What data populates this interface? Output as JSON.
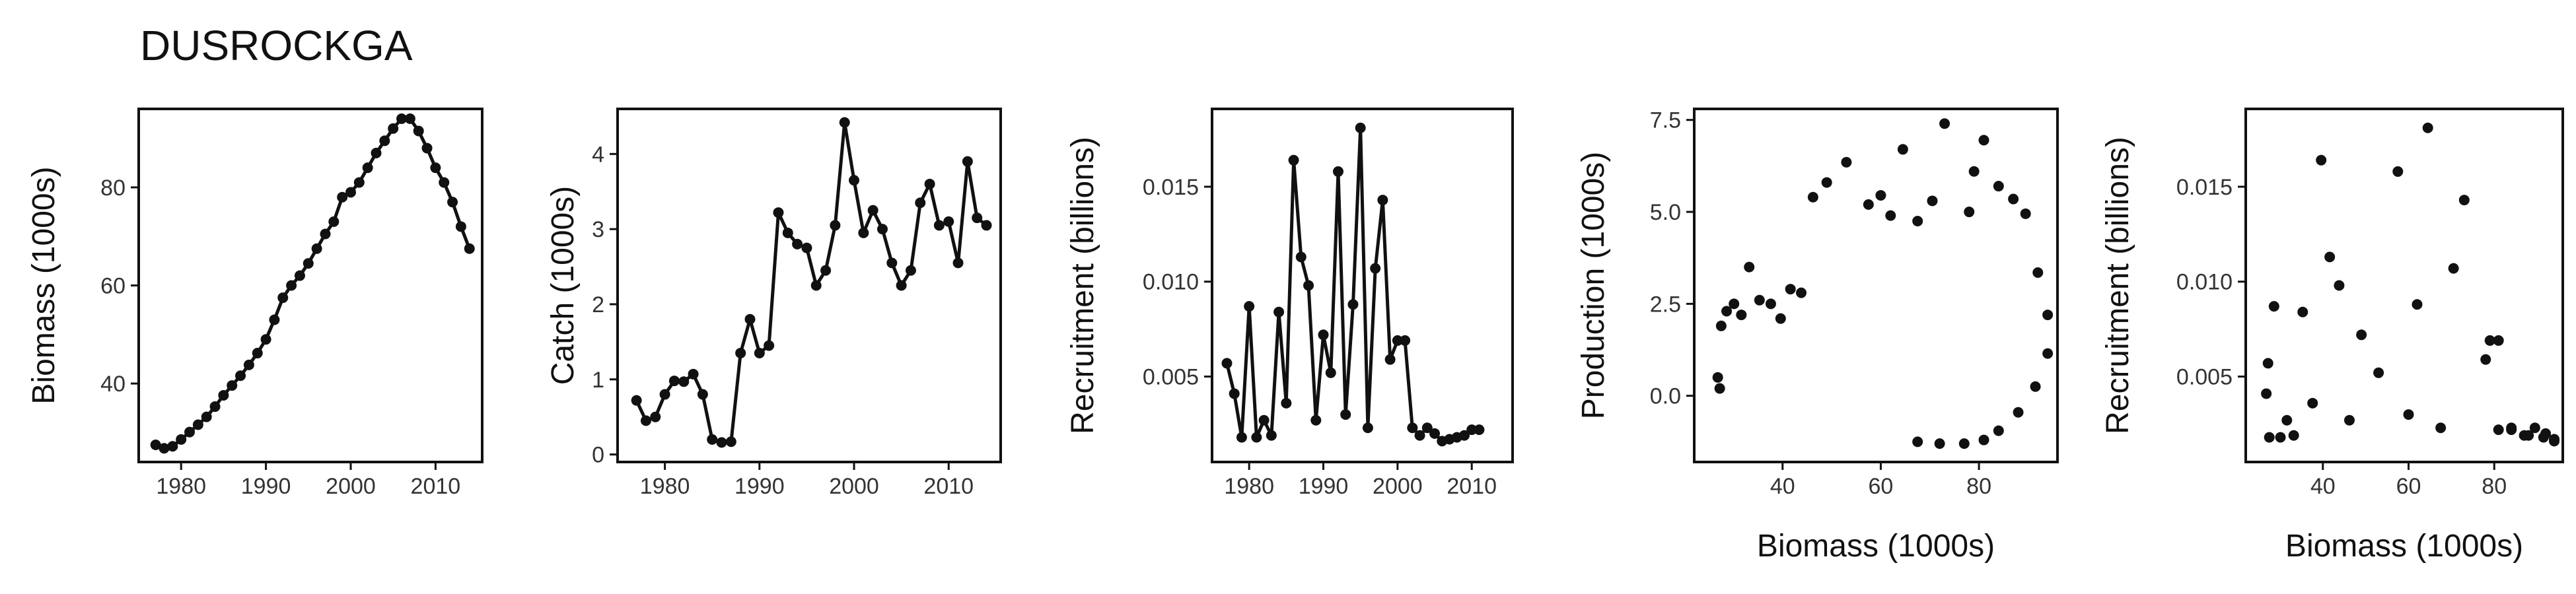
{
  "title": "DUSROCKGA",
  "colors": {
    "ink": "#111111",
    "tick": "#333333",
    "background": "#ffffff"
  },
  "chart_data": [
    {
      "type": "line",
      "id": "biomass",
      "xlabel": "",
      "ylabel": "Biomass (1000s)",
      "xlim": [
        1975,
        2015.5
      ],
      "ylim": [
        24,
        96
      ],
      "xticks": [
        1980,
        1990,
        2000,
        2010
      ],
      "yticks": [
        40,
        60,
        80
      ],
      "x": [
        1977,
        1978,
        1979,
        1980,
        1981,
        1982,
        1983,
        1984,
        1985,
        1986,
        1987,
        1988,
        1989,
        1990,
        1991,
        1992,
        1993,
        1994,
        1995,
        1996,
        1997,
        1998,
        1999,
        2000,
        2001,
        2002,
        2003,
        2004,
        2005,
        2006,
        2007,
        2008,
        2009,
        2010,
        2011,
        2012,
        2013,
        2014
      ],
      "y": [
        27.5,
        26.8,
        27.2,
        28.6,
        30.1,
        31.6,
        33.2,
        35.3,
        37.6,
        39.6,
        41.6,
        43.8,
        46.2,
        49.0,
        53.0,
        57.5,
        60.0,
        62.0,
        64.5,
        67.5,
        70.5,
        73.0,
        78.0,
        79.0,
        81.0,
        84.0,
        87.0,
        89.5,
        92.0,
        94.0,
        94.0,
        91.5,
        88.0,
        84.0,
        81.0,
        77.0,
        72.0,
        67.5
      ]
    },
    {
      "type": "line",
      "id": "catch",
      "xlabel": "",
      "ylabel": "Catch (1000s)",
      "xlim": [
        1975,
        2015.5
      ],
      "ylim": [
        -0.1,
        4.6
      ],
      "xticks": [
        1980,
        1990,
        2000,
        2010
      ],
      "yticks": [
        0,
        1,
        2,
        3,
        4
      ],
      "x": [
        1977,
        1978,
        1979,
        1980,
        1981,
        1982,
        1983,
        1984,
        1985,
        1986,
        1987,
        1988,
        1989,
        1990,
        1991,
        1992,
        1993,
        1994,
        1995,
        1996,
        1997,
        1998,
        1999,
        2000,
        2001,
        2002,
        2003,
        2004,
        2005,
        2006,
        2007,
        2008,
        2009,
        2010,
        2011,
        2012,
        2013,
        2014
      ],
      "y": [
        0.72,
        0.45,
        0.5,
        0.8,
        0.98,
        0.97,
        1.07,
        0.8,
        0.2,
        0.16,
        0.17,
        1.35,
        1.8,
        1.35,
        1.45,
        3.22,
        2.95,
        2.8,
        2.75,
        2.25,
        2.45,
        3.05,
        4.42,
        3.65,
        2.95,
        3.25,
        3.0,
        2.55,
        2.25,
        2.45,
        3.35,
        3.6,
        3.05,
        3.1,
        2.55,
        3.9,
        3.15,
        3.05
      ]
    },
    {
      "type": "line",
      "id": "recruitment",
      "xlabel": "",
      "ylabel": "Recruitment (billions)",
      "xlim": [
        1975,
        2015.5
      ],
      "ylim": [
        0.0005,
        0.0191
      ],
      "xticks": [
        1980,
        1990,
        2000,
        2010
      ],
      "yticks": [
        0.005,
        0.01,
        0.015
      ],
      "ytick_labels": [
        "0.005",
        "0.010",
        "0.015"
      ],
      "x": [
        1977,
        1978,
        1979,
        1980,
        1981,
        1982,
        1983,
        1984,
        1985,
        1986,
        1987,
        1988,
        1989,
        1990,
        1991,
        1992,
        1993,
        1994,
        1995,
        1996,
        1997,
        1998,
        1999,
        2000,
        2001,
        2002,
        2003,
        2004,
        2005,
        2006,
        2007,
        2008,
        2009,
        2010,
        2011
      ],
      "y": [
        0.0057,
        0.0041,
        0.0018,
        0.0087,
        0.0018,
        0.0027,
        0.0019,
        0.0084,
        0.0036,
        0.0164,
        0.0113,
        0.0098,
        0.0027,
        0.0072,
        0.0052,
        0.0158,
        0.003,
        0.0088,
        0.0181,
        0.0023,
        0.0107,
        0.0143,
        0.0059,
        0.0069,
        0.0069,
        0.0023,
        0.0019,
        0.0023,
        0.002,
        0.0016,
        0.0017,
        0.0018,
        0.0019,
        0.0022,
        0.0022
      ]
    },
    {
      "type": "scatter",
      "id": "production",
      "xlabel": "Biomass (1000s)",
      "ylabel": "Production (1000s)",
      "xlim": [
        22,
        96
      ],
      "ylim": [
        -1.8,
        7.8
      ],
      "xticks": [
        40,
        60,
        80
      ],
      "yticks": [
        0.0,
        2.5,
        5.0,
        7.5
      ],
      "ytick_labels": [
        "0.0",
        "2.5",
        "5.0",
        "7.5"
      ],
      "x": [
        26.8,
        27.2,
        27.5,
        28.6,
        30.1,
        31.6,
        33.2,
        35.3,
        37.6,
        39.6,
        41.6,
        43.8,
        46.2,
        49.0,
        53.0,
        57.5,
        60.0,
        62.0,
        64.5,
        67.5,
        70.5,
        73.0,
        78.0,
        79.0,
        81.0,
        84.0,
        87.0,
        89.5,
        92.0,
        94.0,
        94.0,
        91.5,
        88.0,
        84.0,
        81.0,
        77.0,
        72.0,
        67.5
      ],
      "y": [
        0.5,
        0.2,
        1.9,
        2.3,
        2.5,
        2.2,
        3.5,
        2.6,
        2.5,
        2.1,
        2.9,
        2.8,
        5.4,
        5.8,
        6.35,
        5.2,
        5.45,
        4.9,
        6.7,
        4.75,
        5.3,
        7.4,
        5.0,
        6.1,
        6.95,
        5.7,
        5.35,
        4.95,
        3.35,
        2.2,
        1.15,
        0.25,
        -0.45,
        -0.95,
        -1.2,
        -1.3,
        -1.3,
        -1.25
      ]
    },
    {
      "type": "scatter",
      "id": "recruitment-vs-biomass",
      "xlabel": "Biomass (1000s)",
      "ylabel": "Recruitment (billions)",
      "xlim": [
        22,
        96
      ],
      "ylim": [
        0.0005,
        0.0191
      ],
      "xticks": [
        40,
        60,
        80
      ],
      "yticks": [
        0.005,
        0.01,
        0.015
      ],
      "ytick_labels": [
        "0.005",
        "0.010",
        "0.015"
      ],
      "x": [
        26.8,
        27.2,
        27.5,
        28.6,
        30.1,
        31.6,
        33.2,
        35.3,
        37.6,
        39.6,
        41.6,
        43.8,
        46.2,
        49.0,
        53.0,
        57.5,
        60.0,
        62.0,
        64.5,
        67.5,
        70.5,
        73.0,
        78.0,
        79.0,
        81.0,
        84.0,
        87.0,
        89.5,
        92.0,
        94.0,
        94.0,
        91.5,
        88.0,
        84.0,
        81.0
      ],
      "y": [
        0.0041,
        0.0057,
        0.0018,
        0.0087,
        0.0018,
        0.0027,
        0.0019,
        0.0084,
        0.0036,
        0.0164,
        0.0113,
        0.0098,
        0.0027,
        0.0072,
        0.0052,
        0.0158,
        0.003,
        0.0088,
        0.0181,
        0.0023,
        0.0107,
        0.0143,
        0.0059,
        0.0069,
        0.0069,
        0.0023,
        0.0019,
        0.0023,
        0.002,
        0.0016,
        0.0017,
        0.0018,
        0.0019,
        0.0022,
        0.0022
      ]
    }
  ]
}
